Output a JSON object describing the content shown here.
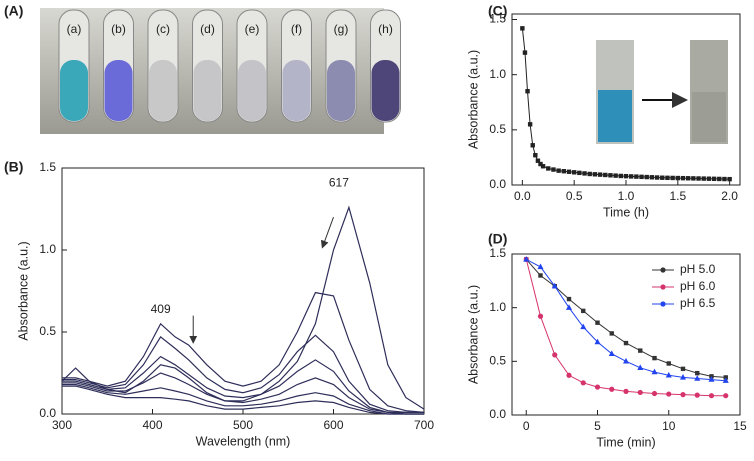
{
  "photo": {
    "label": "(A)",
    "tube_labels": [
      "(a)",
      "(b)",
      "(c)",
      "(d)",
      "(e)",
      "(f)",
      "(g)",
      "(h)"
    ]
  },
  "chart_data": [
    {
      "type": "line",
      "label": "(B)",
      "xlabel": "Wavelength (nm)",
      "ylabel": "Absorbance (a.u.)",
      "xlim": [
        300,
        700
      ],
      "ylim": [
        0,
        1.5
      ],
      "xticks": [
        300,
        400,
        500,
        600,
        700
      ],
      "yticks": [
        {
          "value": 0,
          "label": "0.0"
        },
        0.5,
        {
          "value": 1,
          "label": "1.0"
        },
        1.5
      ],
      "annotations": [
        "617",
        "409"
      ],
      "x": [
        300,
        315,
        330,
        350,
        370,
        390,
        409,
        425,
        440,
        460,
        480,
        500,
        520,
        540,
        560,
        580,
        600,
        617,
        640,
        660,
        680,
        700
      ],
      "series": [
        {
          "color": "#2e2e5a",
          "values": [
            0.2,
            0.28,
            0.2,
            0.15,
            0.13,
            0.2,
            0.3,
            0.28,
            0.22,
            0.13,
            0.08,
            0.08,
            0.12,
            0.2,
            0.32,
            0.55,
            1.0,
            1.26,
            0.8,
            0.3,
            0.1,
            0.03
          ]
        },
        {
          "color": "#2e2e5a",
          "values": [
            0.22,
            0.22,
            0.2,
            0.17,
            0.2,
            0.35,
            0.55,
            0.47,
            0.42,
            0.3,
            0.2,
            0.17,
            0.2,
            0.3,
            0.5,
            0.74,
            0.72,
            0.45,
            0.15,
            0.05,
            0.02,
            0.01
          ]
        },
        {
          "color": "#2e2e5a",
          "values": [
            0.21,
            0.21,
            0.19,
            0.16,
            0.18,
            0.3,
            0.47,
            0.4,
            0.33,
            0.22,
            0.15,
            0.13,
            0.16,
            0.24,
            0.38,
            0.48,
            0.38,
            0.2,
            0.06,
            0.02,
            0.01,
            0.01
          ]
        },
        {
          "color": "#2e2e5a",
          "values": [
            0.2,
            0.2,
            0.18,
            0.15,
            0.16,
            0.25,
            0.35,
            0.3,
            0.24,
            0.16,
            0.11,
            0.1,
            0.12,
            0.17,
            0.26,
            0.33,
            0.26,
            0.14,
            0.04,
            0.01,
            0.01,
            0.01
          ]
        },
        {
          "color": "#2e2e5a",
          "values": [
            0.19,
            0.19,
            0.17,
            0.14,
            0.14,
            0.19,
            0.25,
            0.22,
            0.18,
            0.12,
            0.08,
            0.07,
            0.09,
            0.12,
            0.18,
            0.22,
            0.18,
            0.1,
            0.03,
            0.01,
            0,
            0
          ]
        },
        {
          "color": "#2e2e5a",
          "values": [
            0.18,
            0.18,
            0.16,
            0.13,
            0.12,
            0.14,
            0.16,
            0.14,
            0.12,
            0.08,
            0.05,
            0.05,
            0.06,
            0.08,
            0.11,
            0.13,
            0.11,
            0.06,
            0.02,
            0,
            0,
            0
          ]
        },
        {
          "color": "#2e2e5a",
          "values": [
            0.17,
            0.17,
            0.15,
            0.12,
            0.1,
            0.1,
            0.1,
            0.09,
            0.08,
            0.05,
            0.03,
            0.03,
            0.04,
            0.05,
            0.07,
            0.08,
            0.07,
            0.04,
            0.01,
            0,
            0,
            0
          ]
        }
      ]
    },
    {
      "type": "line",
      "label": "(C)",
      "xlabel": "Time (h)",
      "ylabel": "Absorbance (a.u.)",
      "xlim": [
        -0.1,
        2.1
      ],
      "ylim": [
        0,
        1.55
      ],
      "xticks": [
        {
          "value": 0,
          "label": "0.0"
        },
        0.5,
        {
          "value": 1,
          "label": "1.0"
        },
        1.5,
        {
          "value": 2,
          "label": "2.0"
        }
      ],
      "yticks": [
        {
          "value": 0,
          "label": "0.0"
        },
        0.5,
        {
          "value": 1,
          "label": "1.0"
        },
        1.5
      ],
      "x": [
        0,
        0.025,
        0.05,
        0.075,
        0.1,
        0.125,
        0.15,
        0.175,
        0.2,
        0.25,
        0.3,
        0.35,
        0.4,
        0.45,
        0.5,
        0.55,
        0.6,
        0.65,
        0.7,
        0.75,
        0.8,
        0.85,
        0.9,
        0.95,
        1.0,
        1.05,
        1.1,
        1.15,
        1.2,
        1.25,
        1.3,
        1.35,
        1.4,
        1.45,
        1.5,
        1.55,
        1.6,
        1.65,
        1.7,
        1.75,
        1.8,
        1.85,
        1.9,
        1.95,
        2.0
      ],
      "series": [
        {
          "color": "#222222",
          "marker": "square",
          "values": [
            1.42,
            1.2,
            0.85,
            0.55,
            0.36,
            0.27,
            0.22,
            0.19,
            0.17,
            0.15,
            0.14,
            0.13,
            0.125,
            0.12,
            0.115,
            0.11,
            0.105,
            0.1,
            0.097,
            0.094,
            0.091,
            0.088,
            0.085,
            0.082,
            0.08,
            0.078,
            0.076,
            0.074,
            0.072,
            0.07,
            0.068,
            0.066,
            0.065,
            0.064,
            0.063,
            0.062,
            0.061,
            0.06,
            0.059,
            0.058,
            0.057,
            0.056,
            0.055,
            0.054,
            0.053
          ]
        }
      ]
    },
    {
      "type": "line",
      "label": "(D)",
      "xlabel": "Time (min)",
      "ylabel": "Absorbance (a.u.)",
      "xlim": [
        -1,
        15
      ],
      "ylim": [
        0,
        1.5
      ],
      "xticks": [
        0,
        5,
        10,
        15
      ],
      "yticks": [
        {
          "value": 0,
          "label": "0.0"
        },
        0.5,
        {
          "value": 1,
          "label": "1.0"
        },
        1.5
      ],
      "legend": "top-right",
      "x": [
        0,
        1,
        2,
        3,
        4,
        5,
        6,
        7,
        8,
        9,
        10,
        11,
        12,
        13,
        14
      ],
      "series": [
        {
          "name": "pH 5.0",
          "color": "#333333",
          "marker": "square",
          "values": [
            1.45,
            1.3,
            1.2,
            1.08,
            0.97,
            0.86,
            0.76,
            0.67,
            0.6,
            0.53,
            0.48,
            0.43,
            0.39,
            0.36,
            0.35
          ]
        },
        {
          "name": "pH 6.0",
          "color": "#d6336c",
          "marker": "circle",
          "values": [
            1.45,
            0.92,
            0.56,
            0.37,
            0.3,
            0.26,
            0.24,
            0.22,
            0.21,
            0.2,
            0.195,
            0.19,
            0.185,
            0.18,
            0.18
          ]
        },
        {
          "name": "pH 6.5",
          "color": "#2244ee",
          "marker": "triangle",
          "values": [
            1.45,
            1.38,
            1.2,
            1.0,
            0.82,
            0.68,
            0.57,
            0.5,
            0.44,
            0.4,
            0.37,
            0.35,
            0.34,
            0.33,
            0.32
          ]
        }
      ]
    }
  ]
}
